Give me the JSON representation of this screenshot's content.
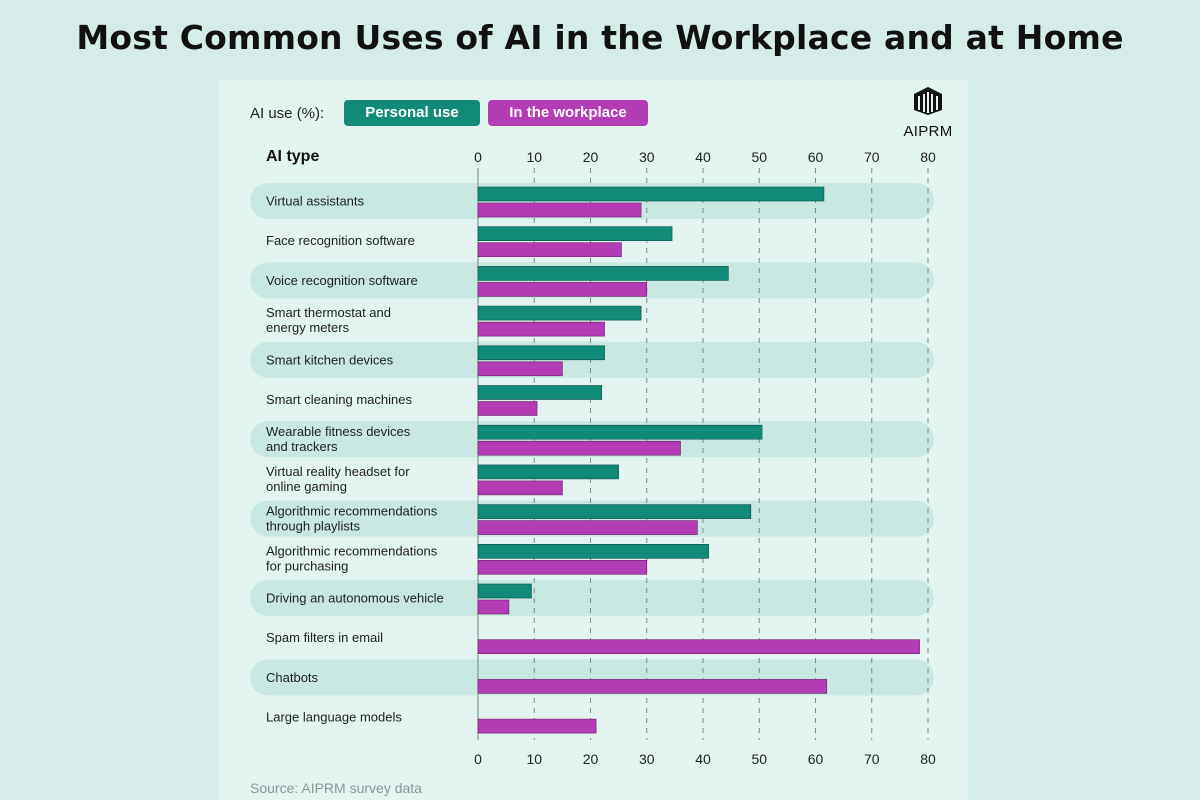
{
  "title": "Most Common Uses of AI in the Workplace and at Home",
  "legend": {
    "prefix": "AI use (%):",
    "items": [
      {
        "label": "Personal use",
        "color": "#128a78"
      },
      {
        "label": "In the workplace",
        "color": "#b43cb4"
      }
    ]
  },
  "brand": {
    "name": "AIPRM",
    "icon": "aiprm-logo-icon"
  },
  "column_header": "AI type",
  "source": "Source: AIPRM survey data",
  "colors": {
    "background": "#d6ece8",
    "card": "#e3f3f0",
    "band": "#c8e8e1",
    "personal": "#128a78",
    "workplace": "#b43cb4"
  },
  "chart_data": {
    "type": "bar",
    "orientation": "horizontal",
    "categories": [
      [
        "Virtual assistants"
      ],
      [
        "Face recognition software"
      ],
      [
        "Voice recognition software"
      ],
      [
        "Smart thermostat and",
        "energy meters"
      ],
      [
        "Smart kitchen devices"
      ],
      [
        "Smart cleaning machines"
      ],
      [
        "Wearable fitness devices",
        "and trackers"
      ],
      [
        "Virtual reality headset for",
        "online gaming"
      ],
      [
        "Algorithmic recommendations",
        "through playlists"
      ],
      [
        "Algorithmic recommendations",
        "for purchasing"
      ],
      [
        "Driving an autonomous vehicle"
      ],
      [
        "Spam filters in email"
      ],
      [
        "Chatbots"
      ],
      [
        "Large language models"
      ]
    ],
    "series": [
      {
        "name": "Personal use",
        "color": "#128a78",
        "values": [
          61.5,
          34.5,
          44.5,
          29,
          22.5,
          22,
          50.5,
          25,
          48.5,
          41,
          9.5,
          null,
          null,
          null
        ]
      },
      {
        "name": "In the workplace",
        "color": "#b43cb4",
        "values": [
          29,
          25.5,
          30,
          22.5,
          15,
          10.5,
          36,
          15,
          39,
          30,
          5.5,
          78.5,
          62,
          21
        ]
      }
    ],
    "xlim": [
      0,
      80
    ],
    "xticks": [
      0,
      10,
      20,
      30,
      40,
      50,
      60,
      70,
      80
    ],
    "ticks_top_and_bottom": true,
    "grid": "dashed vertical",
    "legend_position": "top-left"
  }
}
